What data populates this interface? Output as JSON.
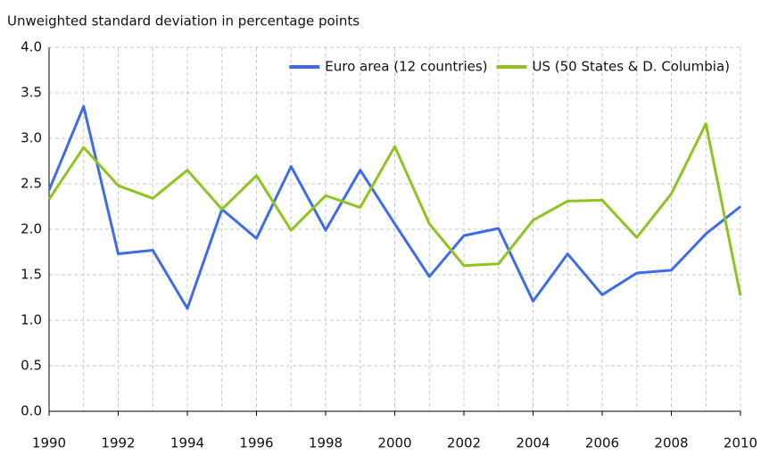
{
  "chart_data": {
    "type": "line",
    "title": "Unweighted standard deviation in percentage points",
    "x": [
      1990,
      1991,
      1992,
      1993,
      1994,
      1995,
      1996,
      1997,
      1998,
      1999,
      2000,
      2001,
      2002,
      2003,
      2004,
      2005,
      2006,
      2007,
      2008,
      2009,
      2010
    ],
    "series": [
      {
        "name": "Euro area (12 countries)",
        "color": "#3f6be8",
        "values": [
          2.43,
          3.35,
          1.73,
          1.77,
          1.13,
          2.22,
          1.9,
          2.69,
          1.99,
          2.65,
          2.06,
          1.48,
          1.93,
          2.01,
          1.21,
          1.73,
          1.28,
          1.52,
          1.55,
          1.95,
          2.25
        ]
      },
      {
        "name": "US (50 States & D. Columbia)",
        "color": "#8fc31f",
        "values": [
          2.33,
          2.9,
          2.48,
          2.34,
          2.65,
          2.22,
          2.59,
          1.99,
          2.37,
          2.24,
          2.91,
          2.06,
          1.6,
          1.62,
          2.1,
          2.31,
          2.32,
          1.91,
          2.39,
          3.16,
          1.27
        ]
      }
    ],
    "xlim": [
      1990,
      2010
    ],
    "xticks": [
      1990,
      1992,
      1994,
      1996,
      1998,
      2000,
      2002,
      2004,
      2006,
      2008,
      2010
    ],
    "ylim": [
      0,
      4
    ],
    "yticks": [
      {
        "value": 0,
        "label": "0.0"
      },
      0.5,
      {
        "value": 1,
        "label": "1.0"
      },
      1.5,
      {
        "value": 2,
        "label": "2.0"
      },
      2.5,
      {
        "value": 3,
        "label": "3.0"
      },
      3.5,
      {
        "value": 4,
        "label": "4.0"
      }
    ],
    "grid": true,
    "legend": "top-right"
  }
}
